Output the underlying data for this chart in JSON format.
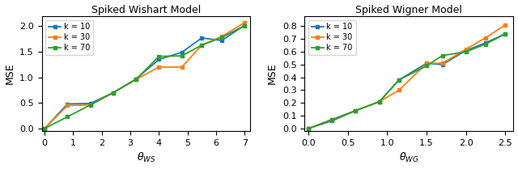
{
  "wishart": {
    "title": "Spiked Wishart Model",
    "xlabel": "$\\theta_{WS}$",
    "ylabel": "MSE",
    "x": [
      0.0,
      0.8,
      1.6,
      2.4,
      3.2,
      4.0,
      4.8,
      5.5,
      6.2,
      7.0
    ],
    "k10_y": [
      0.0,
      0.48,
      0.49,
      0.7,
      0.97,
      1.35,
      1.49,
      1.77,
      1.72,
      2.02
    ],
    "k30_y": [
      0.0,
      0.45,
      0.46,
      0.7,
      0.96,
      1.2,
      1.2,
      1.63,
      1.8,
      2.07
    ],
    "k70_y": [
      0.0,
      0.23,
      0.46,
      0.7,
      0.96,
      1.41,
      1.42,
      1.63,
      1.78,
      2.01
    ],
    "ylim": [
      -0.05,
      2.2
    ],
    "xlim": [
      -0.1,
      7.2
    ],
    "yticks": [
      0.0,
      0.5,
      1.0,
      1.5,
      2.0
    ],
    "xticks": [
      0,
      1,
      2,
      3,
      4,
      5,
      6,
      7
    ]
  },
  "wigner": {
    "title": "Spiked Wigner Model",
    "xlabel": "$\\theta_{WG}$",
    "ylabel": "MSE",
    "x": [
      0.0,
      0.3,
      0.6,
      0.9,
      1.15,
      1.5,
      1.7,
      2.0,
      2.25,
      2.5
    ],
    "k10_y": [
      0.0,
      0.06,
      0.14,
      0.21,
      0.38,
      0.51,
      0.5,
      0.61,
      0.67,
      0.74
    ],
    "k30_y": [
      0.0,
      0.07,
      0.14,
      0.21,
      0.3,
      0.51,
      0.51,
      0.62,
      0.71,
      0.81
    ],
    "k70_y": [
      0.0,
      0.07,
      0.14,
      0.21,
      0.38,
      0.49,
      0.57,
      0.6,
      0.66,
      0.74
    ],
    "ylim": [
      -0.02,
      0.88
    ],
    "xlim": [
      -0.05,
      2.6
    ],
    "yticks": [
      0.0,
      0.1,
      0.2,
      0.3,
      0.4,
      0.5,
      0.6,
      0.7,
      0.8
    ],
    "xticks": [
      0.0,
      0.5,
      1.0,
      1.5,
      2.0,
      2.5
    ]
  },
  "colors": {
    "k10": "#1f77b4",
    "k30": "#ff7f0e",
    "k70": "#2ca02c"
  },
  "marker": "s",
  "markersize": 3.5,
  "linewidth": 1.3,
  "figsize": [
    6.4,
    2.09
  ],
  "dpi": 100
}
